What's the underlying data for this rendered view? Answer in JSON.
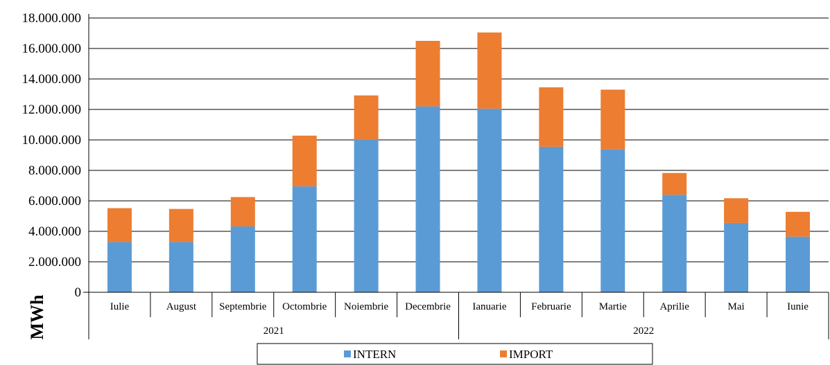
{
  "chart_data": {
    "type": "bar",
    "stacked": true,
    "categories": [
      "Iulie",
      "August",
      "Septembrie",
      "Octombrie",
      "Noiembrie",
      "Decembrie",
      "Ianuarie",
      "Februarie",
      "Martie",
      "Aprilie",
      "Mai",
      "Iunie"
    ],
    "groups": [
      {
        "label": "2021",
        "count": 6
      },
      {
        "label": "2022",
        "count": 6
      }
    ],
    "series": [
      {
        "name": "INTERN",
        "color": "#5B9BD5",
        "values": [
          3300000,
          3300000,
          4320000,
          6950000,
          10000000,
          12200000,
          12050000,
          9550000,
          9400000,
          6400000,
          4550000,
          3650000
        ]
      },
      {
        "name": "IMPORT",
        "color": "#ED7D31",
        "values": [
          2220000,
          2170000,
          1930000,
          3330000,
          2920000,
          4300000,
          5000000,
          3900000,
          3900000,
          1430000,
          1620000,
          1630000
        ]
      }
    ],
    "ylabel": "MWh",
    "ylim": [
      0,
      18000000
    ],
    "yticks": [
      0,
      2000000,
      4000000,
      6000000,
      8000000,
      10000000,
      12000000,
      14000000,
      16000000,
      18000000
    ],
    "ytick_labels": [
      "0",
      "2.000.000",
      "4.000.000",
      "6.000.000",
      "8.000.000",
      "10.000.000",
      "12.000.000",
      "14.000.000",
      "16.000.000",
      "18.000.000"
    ],
    "grid": true,
    "legend_position": "bottom"
  }
}
